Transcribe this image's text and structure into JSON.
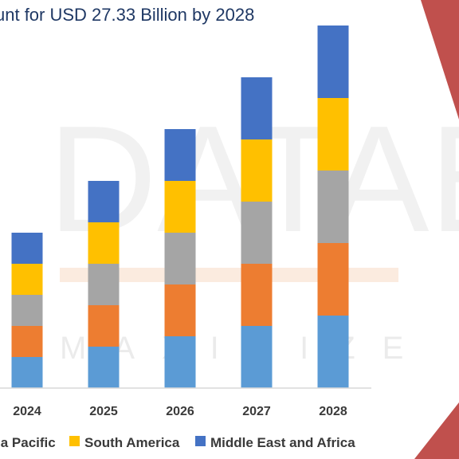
{
  "title": "unt for USD 27.33 Billion by 2028",
  "watermark": {
    "line1": "DATABR",
    "line2": "MAXIMIZE"
  },
  "colors": {
    "title": "#1f3864",
    "accent_red": "#c0504d",
    "accent_orange": "#f0a030"
  },
  "chart_data": {
    "type": "bar",
    "stacked": true,
    "categories": [
      "2024",
      "2025",
      "2026",
      "2027",
      "2028"
    ],
    "series": [
      {
        "name": "",
        "color": "#5b9bd5",
        "values": [
          1.2,
          1.6,
          2.0,
          2.4,
          2.8
        ]
      },
      {
        "name": "",
        "color": "#ed7d31",
        "values": [
          1.2,
          1.6,
          2.0,
          2.4,
          2.8
        ]
      },
      {
        "name": "",
        "color": "#a5a5a5",
        "values": [
          1.2,
          1.6,
          2.0,
          2.4,
          2.8
        ]
      },
      {
        "name": "South America",
        "color": "#ffc000",
        "values": [
          1.2,
          1.6,
          2.0,
          2.4,
          2.8
        ]
      },
      {
        "name": "Middle East and Africa",
        "color": "#4472c4",
        "values": [
          1.2,
          1.6,
          2.0,
          2.4,
          2.8
        ]
      }
    ],
    "legend_partial_label": "ia Pacific",
    "legend_placement": "bottom",
    "ylim": [
      0,
      14
    ],
    "grid": false
  }
}
